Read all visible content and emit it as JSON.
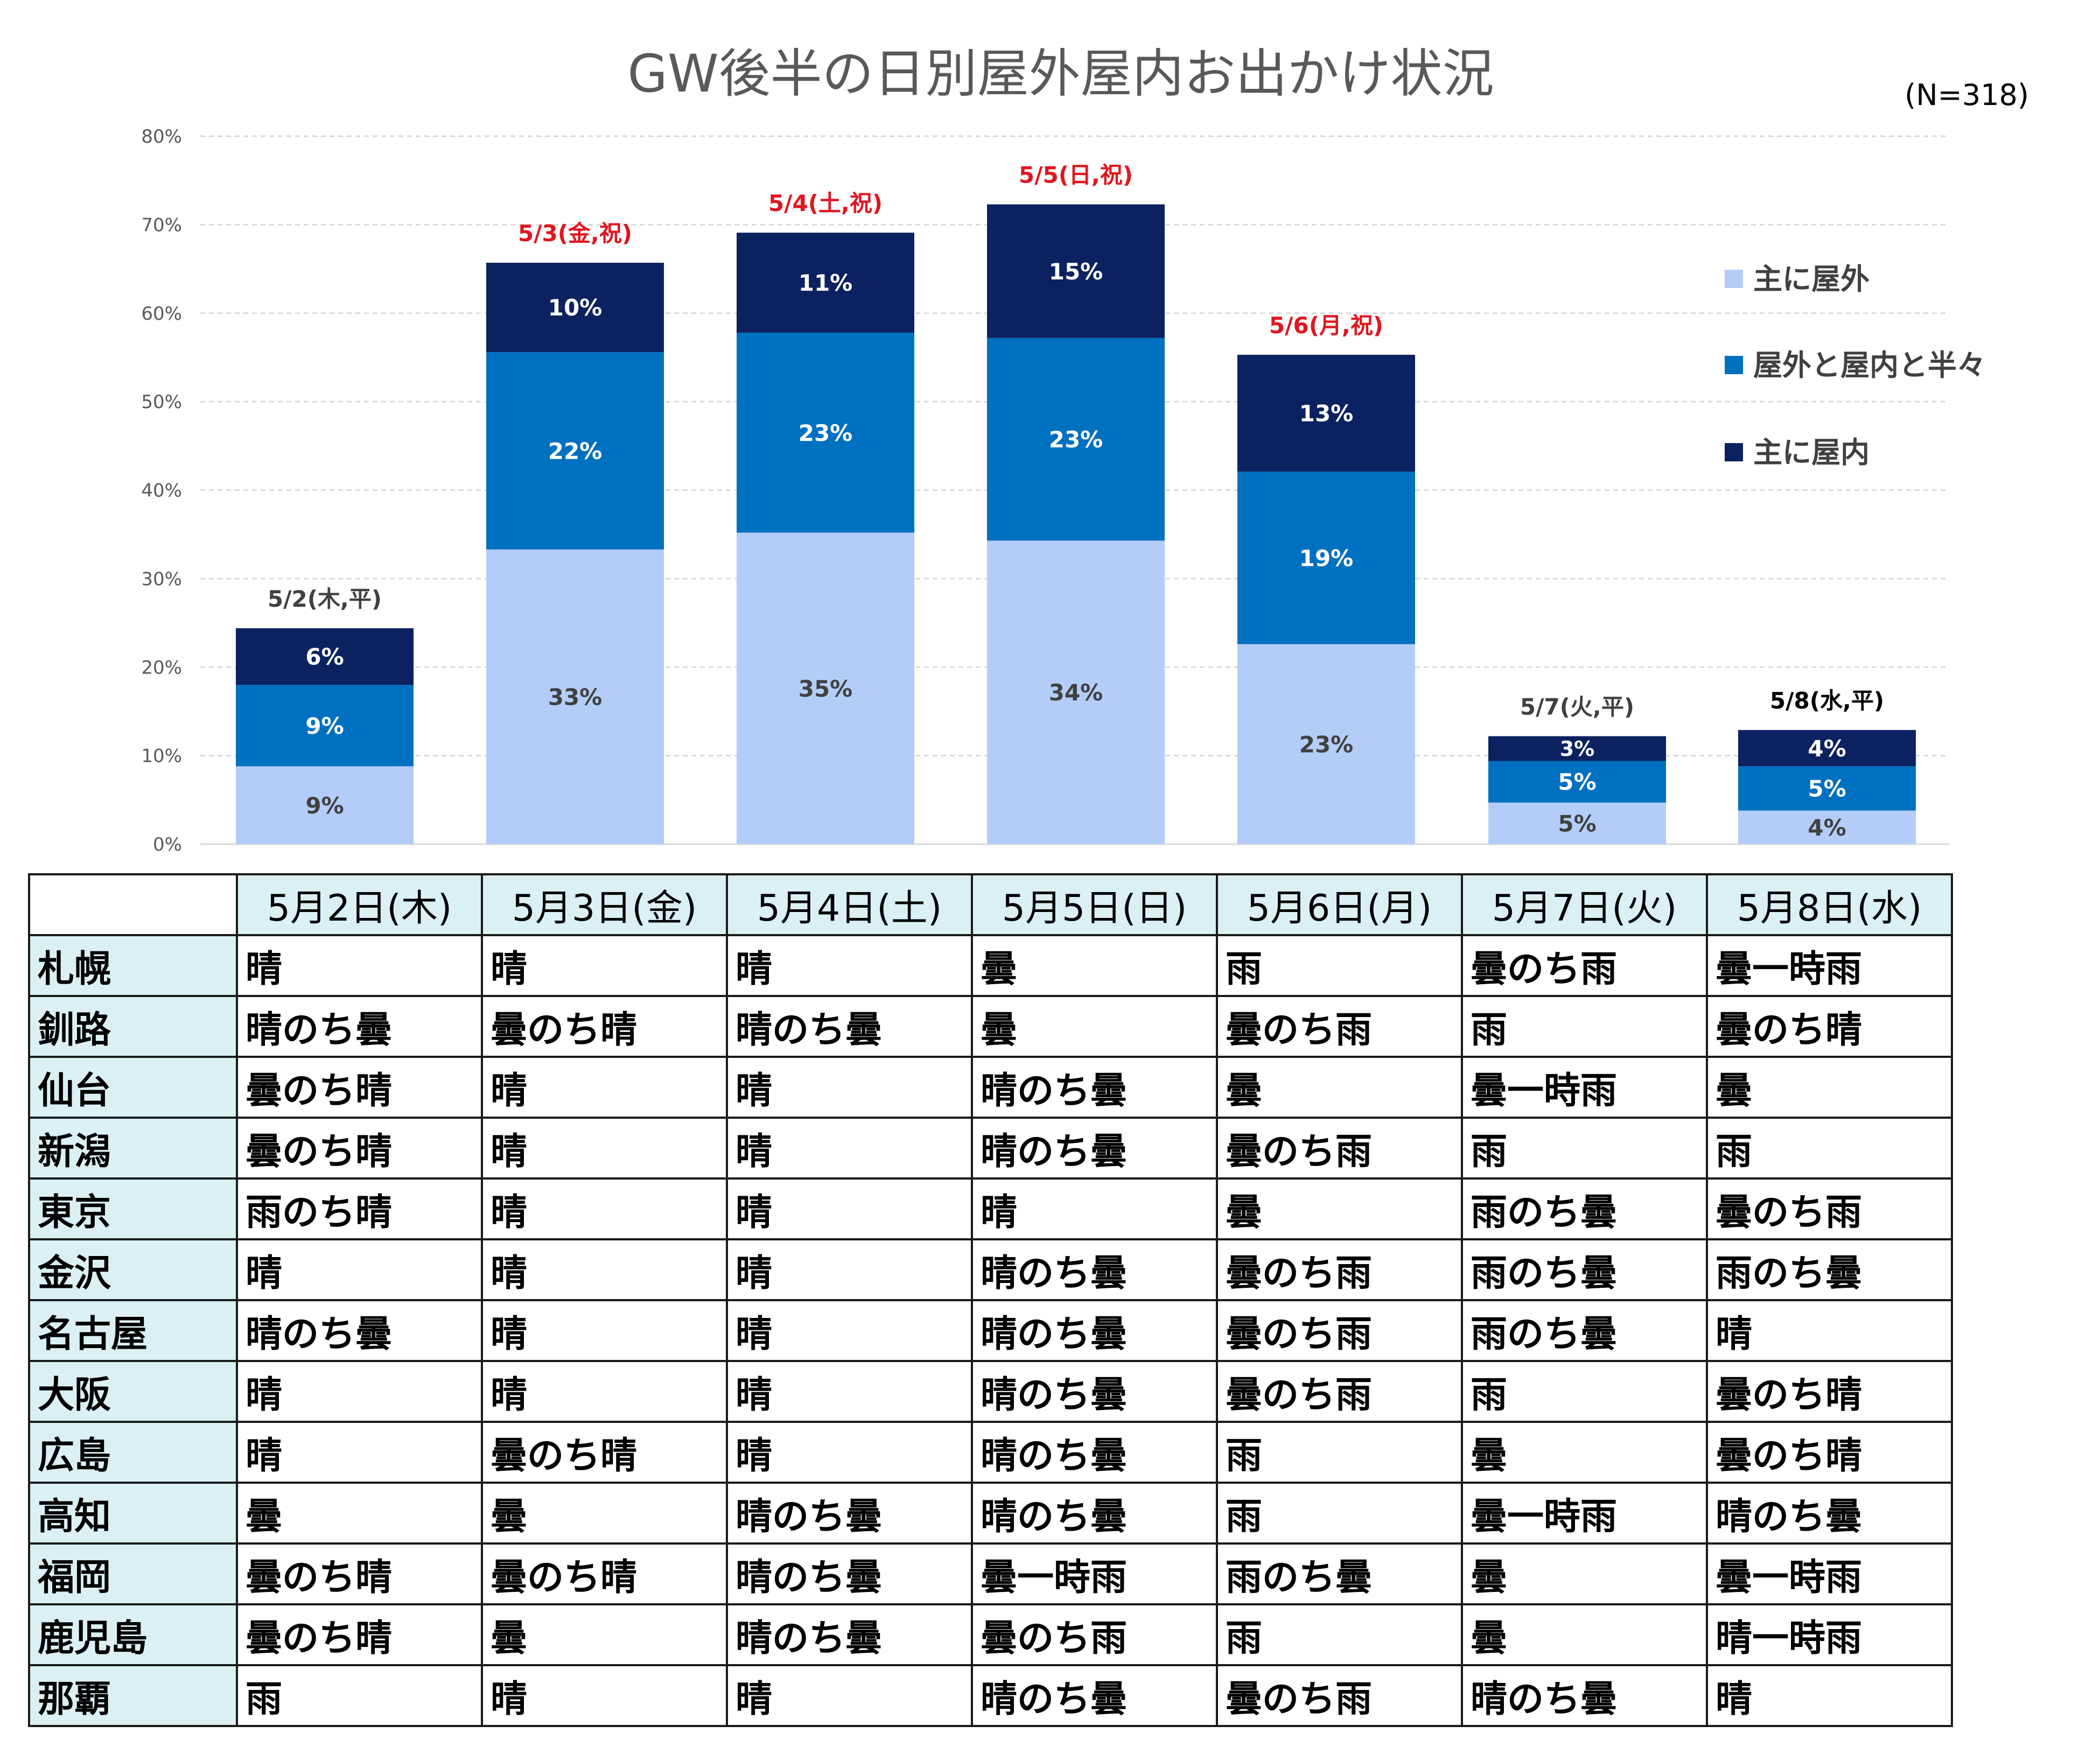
{
  "chart_data": {
    "type": "bar",
    "stacked": true,
    "title": "GW後半の日別屋外屋内お出かけ状況",
    "sample_note": "(N=318)",
    "ylim": [
      0,
      80
    ],
    "yticks": [
      "0%",
      "10%",
      "20%",
      "30%",
      "40%",
      "50%",
      "60%",
      "70%",
      "80%"
    ],
    "gridlines": true,
    "legend_position": "right",
    "categories": [
      "5/2(木,平)",
      "5/3(金,祝)",
      "5/4(土,祝)",
      "5/5(日,祝)",
      "5/6(月,祝)",
      "5/7(火,平)",
      "5/8(水,平)"
    ],
    "holiday": [
      false,
      true,
      true,
      true,
      true,
      false,
      false
    ],
    "series": [
      {
        "name": "主に屋外",
        "color": "#b4cdf8",
        "values": [
          8.8,
          33.3,
          35.2,
          34.3,
          22.6,
          4.7,
          3.8
        ],
        "labels": [
          "9%",
          "33%",
          "35%",
          "34%",
          "23%",
          "5%",
          "4%"
        ]
      },
      {
        "name": "屋外と屋内と半々",
        "color": "#0070c0",
        "values": [
          9.2,
          22.3,
          22.6,
          22.9,
          19.5,
          4.7,
          5.0
        ],
        "labels": [
          "9%",
          "22%",
          "23%",
          "23%",
          "19%",
          "5%",
          "5%"
        ]
      },
      {
        "name": "主に屋内",
        "color": "#0c2160",
        "values": [
          6.4,
          10.1,
          11.3,
          15.1,
          13.2,
          2.8,
          4.1
        ],
        "labels": [
          "6%",
          "10%",
          "11%",
          "15%",
          "13%",
          "3%",
          "4%"
        ]
      }
    ],
    "label_colors": {
      "normal": "#404040",
      "holiday": "#e0161f"
    }
  },
  "weather_table": {
    "dates": [
      "5月2日(木)",
      "5月3日(金)",
      "5月4日(土)",
      "5月5日(日)",
      "5月6日(月)",
      "5月7日(火)",
      "5月8日(水)"
    ],
    "rows": [
      {
        "city": "札幌",
        "weather": [
          "晴",
          "晴",
          "晴",
          "曇",
          "雨",
          "曇のち雨",
          "曇一時雨"
        ]
      },
      {
        "city": "釧路",
        "weather": [
          "晴のち曇",
          "曇のち晴",
          "晴のち曇",
          "曇",
          "曇のち雨",
          "雨",
          "曇のち晴"
        ]
      },
      {
        "city": "仙台",
        "weather": [
          "曇のち晴",
          "晴",
          "晴",
          "晴のち曇",
          "曇",
          "曇一時雨",
          "曇"
        ]
      },
      {
        "city": "新潟",
        "weather": [
          "曇のち晴",
          "晴",
          "晴",
          "晴のち曇",
          "曇のち雨",
          "雨",
          "雨"
        ]
      },
      {
        "city": "東京",
        "weather": [
          "雨のち晴",
          "晴",
          "晴",
          "晴",
          "曇",
          "雨のち曇",
          "曇のち雨"
        ]
      },
      {
        "city": "金沢",
        "weather": [
          "晴",
          "晴",
          "晴",
          "晴のち曇",
          "曇のち雨",
          "雨のち曇",
          "雨のち曇"
        ]
      },
      {
        "city": "名古屋",
        "weather": [
          "晴のち曇",
          "晴",
          "晴",
          "晴のち曇",
          "曇のち雨",
          "雨のち曇",
          "晴"
        ]
      },
      {
        "city": "大阪",
        "weather": [
          "晴",
          "晴",
          "晴",
          "晴のち曇",
          "曇のち雨",
          "雨",
          "曇のち晴"
        ]
      },
      {
        "city": "広島",
        "weather": [
          "晴",
          "曇のち晴",
          "晴",
          "晴のち曇",
          "雨",
          "曇",
          "曇のち晴"
        ]
      },
      {
        "city": "高知",
        "weather": [
          "曇",
          "曇",
          "晴のち曇",
          "晴のち曇",
          "雨",
          "曇一時雨",
          "晴のち曇"
        ]
      },
      {
        "city": "福岡",
        "weather": [
          "曇のち晴",
          "曇のち晴",
          "晴のち曇",
          "曇一時雨",
          "雨のち曇",
          "曇",
          "曇一時雨"
        ]
      },
      {
        "city": "鹿児島",
        "weather": [
          "曇のち晴",
          "曇",
          "晴のち曇",
          "曇のち雨",
          "雨",
          "曇",
          "晴一時雨"
        ]
      },
      {
        "city": "那覇",
        "weather": [
          "雨",
          "晴",
          "晴",
          "晴のち曇",
          "曇のち雨",
          "晴のち曇",
          "晴"
        ]
      }
    ]
  }
}
